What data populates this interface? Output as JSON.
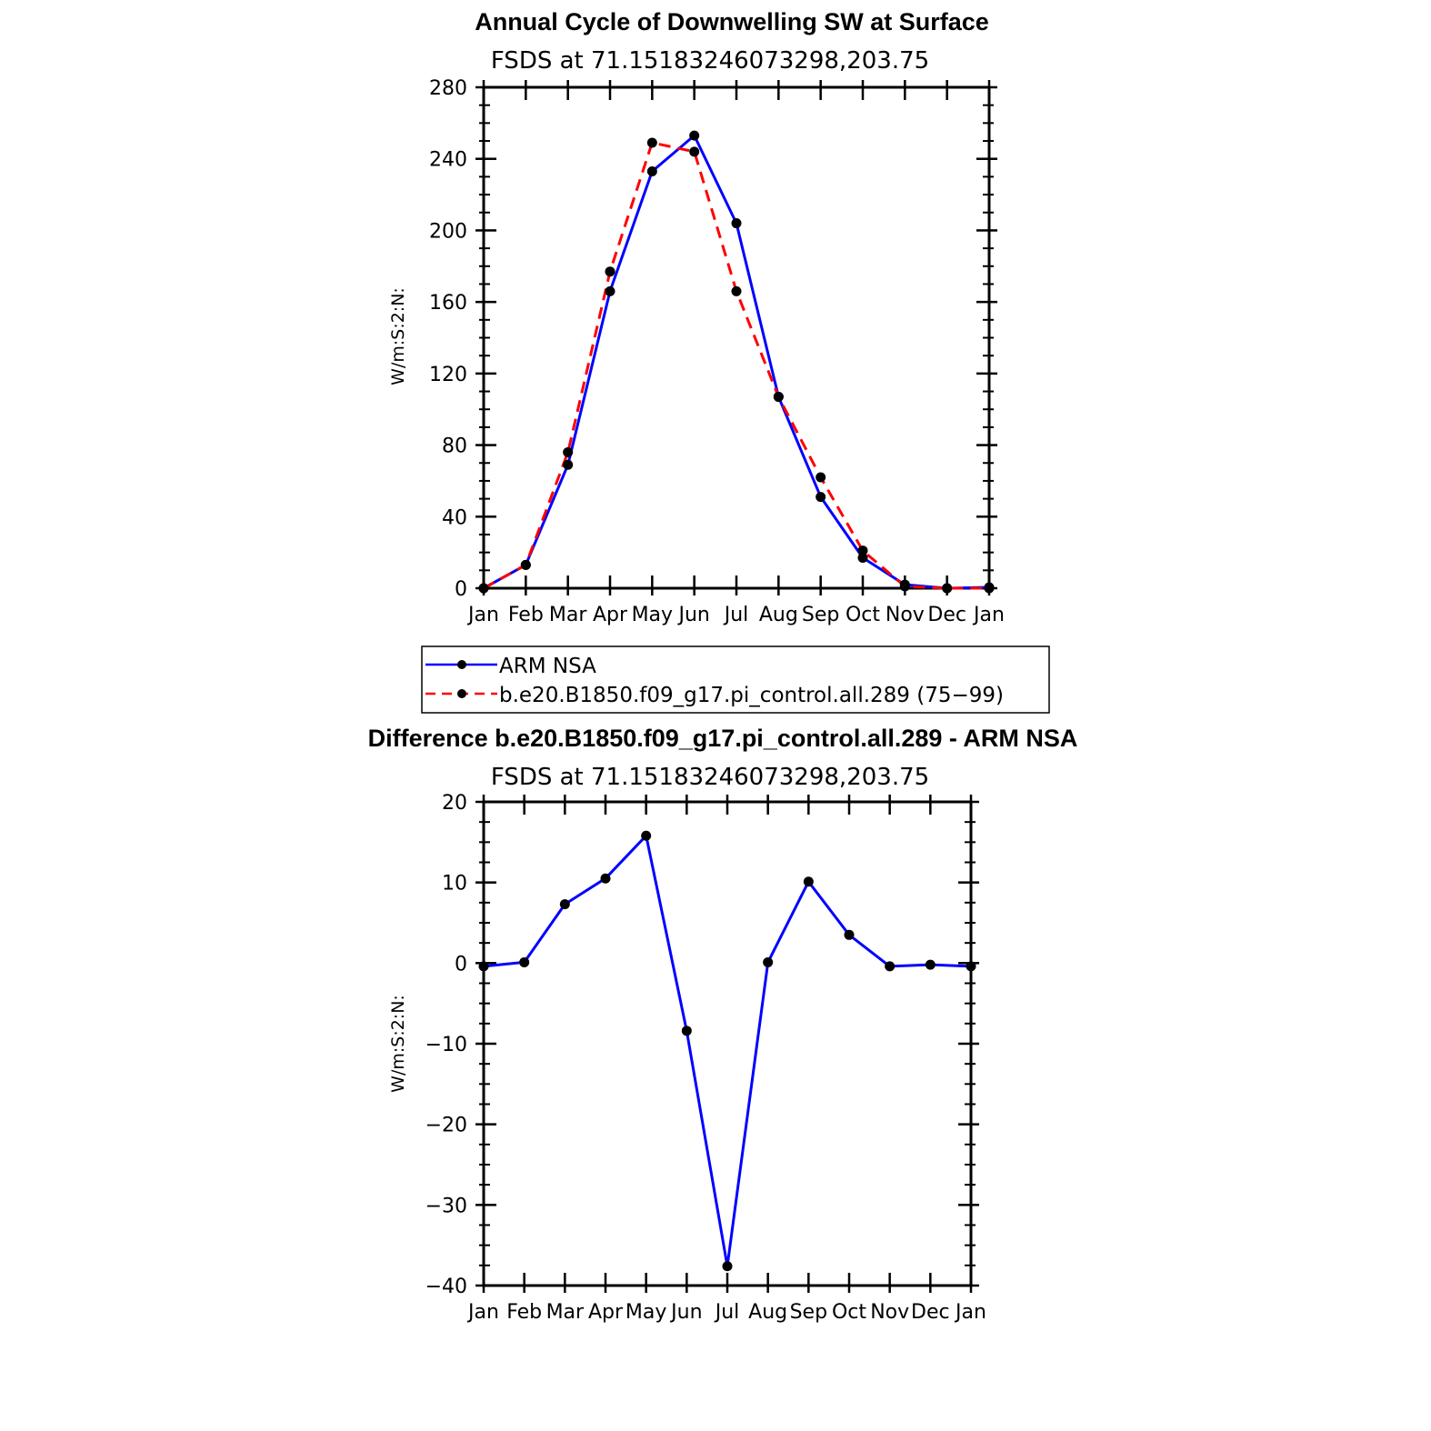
{
  "chart_data": [
    {
      "type": "line",
      "title": "Annual Cycle of Downwelling SW at Surface",
      "subtitle": "FSDS at 71.15183246073298,203.75",
      "ylabel": "W/m:S:2:N:",
      "xlabel": "",
      "categories": [
        "Jan",
        "Feb",
        "Mar",
        "Apr",
        "May",
        "Jun",
        "Jul",
        "Aug",
        "Sep",
        "Oct",
        "Nov",
        "Dec",
        "Jan"
      ],
      "ylim": [
        0,
        280
      ],
      "yticks": [
        "0",
        "40",
        "80",
        "120",
        "160",
        "200",
        "240",
        "280"
      ],
      "series": [
        {
          "name": "ARM NSA",
          "color": "#0000ff",
          "dash": "solid",
          "values": [
            0,
            13,
            69,
            166,
            233,
            253,
            204,
            107,
            51,
            17,
            2,
            0,
            0.5
          ]
        },
        {
          "name": "b.e20.B1850.f09_g17.pi_control.all.289 (75−99)",
          "color": "#ff0000",
          "dash": "dashed",
          "values": [
            0,
            13,
            76,
            177,
            249,
            244,
            166,
            107,
            62,
            21,
            1,
            0,
            0
          ]
        }
      ],
      "legend": "below"
    },
    {
      "type": "line",
      "title": "Difference b.e20.B1850.f09_g17.pi_control.all.289 - ARM NSA",
      "subtitle": "FSDS at 71.15183246073298,203.75",
      "ylabel": "W/m:S:2:N:",
      "xlabel": "",
      "categories": [
        "Jan",
        "Feb",
        "Mar",
        "Apr",
        "May",
        "Jun",
        "Jul",
        "Aug",
        "Sep",
        "Oct",
        "Nov",
        "Dec",
        "Jan"
      ],
      "ylim": [
        -40,
        20
      ],
      "yticks": [
        "−40",
        "−30",
        "−20",
        "−10",
        "0",
        "10",
        "20"
      ],
      "series": [
        {
          "color": "#0000ff",
          "dash": "solid",
          "values": [
            -0.4,
            0.1,
            7.3,
            10.5,
            15.8,
            -8.4,
            -37.6,
            0.1,
            10.1,
            3.5,
            -0.4,
            -0.2,
            -0.4
          ]
        }
      ]
    }
  ]
}
